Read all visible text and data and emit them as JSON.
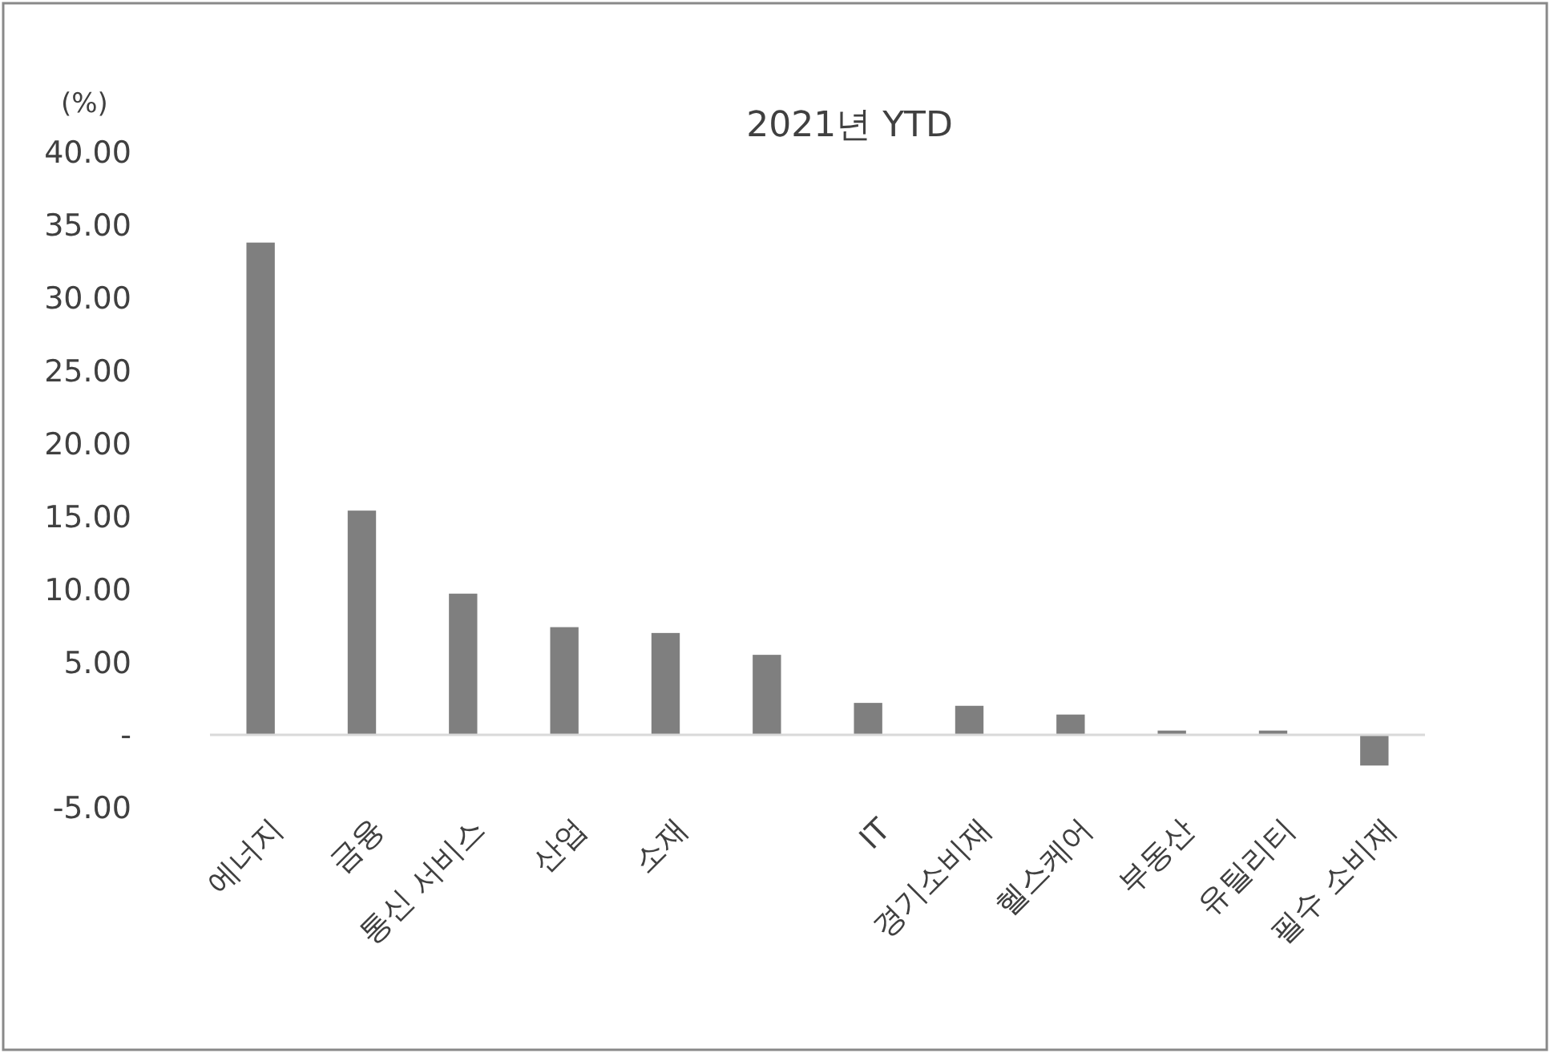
{
  "chart_data": {
    "type": "bar",
    "title": "2021년 YTD",
    "ylabel": "(%)",
    "categories": [
      "에너지",
      "금융",
      "통신 서비스",
      "산업",
      "소재",
      null,
      "IT",
      "경기소비재",
      "헬스케어",
      "부동산",
      "유틸리티",
      "필수 소비재"
    ],
    "values": [
      33.8,
      15.4,
      9.7,
      7.4,
      7.0,
      5.5,
      2.2,
      2.0,
      1.4,
      0.3,
      0.3,
      -2.1
    ],
    "color": "#7f7f7f",
    "ylim": [
      -5,
      40
    ],
    "yticks": [
      {
        "value": -5,
        "label": "-5.00"
      },
      {
        "value": 0,
        "label": "-"
      },
      {
        "value": 5,
        "label": "5.00"
      },
      {
        "value": 10,
        "label": "10.00"
      },
      {
        "value": 15,
        "label": "15.00"
      },
      {
        "value": 20,
        "label": "20.00"
      },
      {
        "value": 25,
        "label": "25.00"
      },
      {
        "value": 30,
        "label": "30.00"
      },
      {
        "value": 35,
        "label": "35.00"
      },
      {
        "value": 40,
        "label": "40.00"
      }
    ],
    "grid": false
  }
}
